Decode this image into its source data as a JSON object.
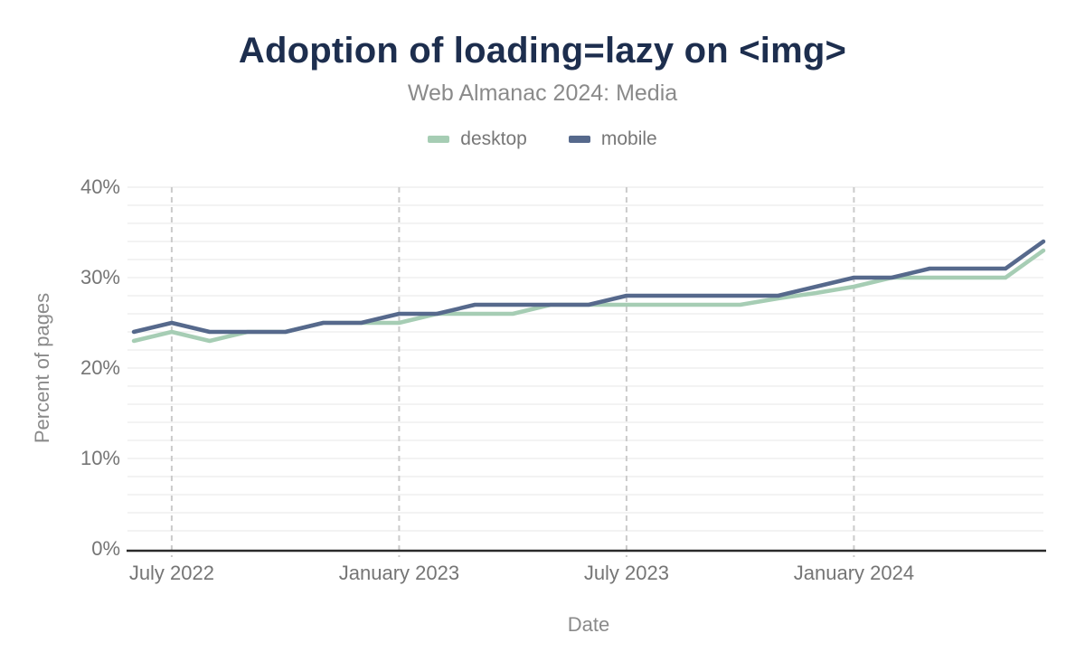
{
  "chart_data": {
    "type": "line",
    "title": "Adoption of loading=lazy on <img>",
    "subtitle": "Web Almanac 2024: Media",
    "xlabel": "Date",
    "ylabel": "Percent of pages",
    "ylim": [
      0,
      40
    ],
    "y_unit": "%",
    "grid": {
      "y_step": 2,
      "y_minor_visible": true,
      "x_gridlines": "dashed at labeled ticks"
    },
    "legend_position": "top",
    "x": [
      "Jun 2022",
      "Jul 2022",
      "Aug 2022",
      "Sep 2022",
      "Oct 2022",
      "Nov 2022",
      "Dec 2022",
      "Jan 2023",
      "Feb 2023",
      "Mar 2023",
      "Apr 2023",
      "May 2023",
      "Jun 2023",
      "Jul 2023",
      "Aug 2023",
      "Sep 2023",
      "Oct 2023",
      "Nov 2023",
      "Dec 2023",
      "Jan 2024",
      "Feb 2024",
      "Mar 2024",
      "Apr 2024",
      "May 2024",
      "Jun 2024"
    ],
    "series": [
      {
        "name": "desktop",
        "color": "#a6cdb4",
        "values": [
          23,
          24,
          23,
          24,
          24,
          25,
          25,
          25,
          26,
          26,
          26,
          27,
          27,
          27,
          27,
          27,
          27,
          27.7,
          28.3,
          29,
          30,
          30,
          30,
          30,
          33
        ]
      },
      {
        "name": "mobile",
        "color": "#56698c",
        "values": [
          24,
          25,
          24,
          24,
          24,
          25,
          25,
          26,
          26,
          27,
          27,
          27,
          27,
          28,
          28,
          28,
          28,
          28,
          29,
          30,
          30,
          31,
          31,
          31,
          34
        ]
      }
    ],
    "xticks": [
      {
        "index": 1,
        "label": "July 2022"
      },
      {
        "index": 7,
        "label": "January 2023"
      },
      {
        "index": 13,
        "label": "July 2023"
      },
      {
        "index": 19,
        "label": "January 2024"
      }
    ],
    "yticks": [
      {
        "value": 0,
        "label": "0%"
      },
      {
        "value": 10,
        "label": "10%"
      },
      {
        "value": 20,
        "label": "20%"
      },
      {
        "value": 30,
        "label": "30%"
      },
      {
        "value": 40,
        "label": "40%"
      }
    ]
  },
  "style_colors": {
    "title": "#1d2e4e",
    "subtitle": "#8a8a8a",
    "tick_text": "#757575",
    "minor_gridline": "#efefef",
    "dashed_gridline": "#cbcbcb",
    "axis_line": "#2a2a2a"
  }
}
